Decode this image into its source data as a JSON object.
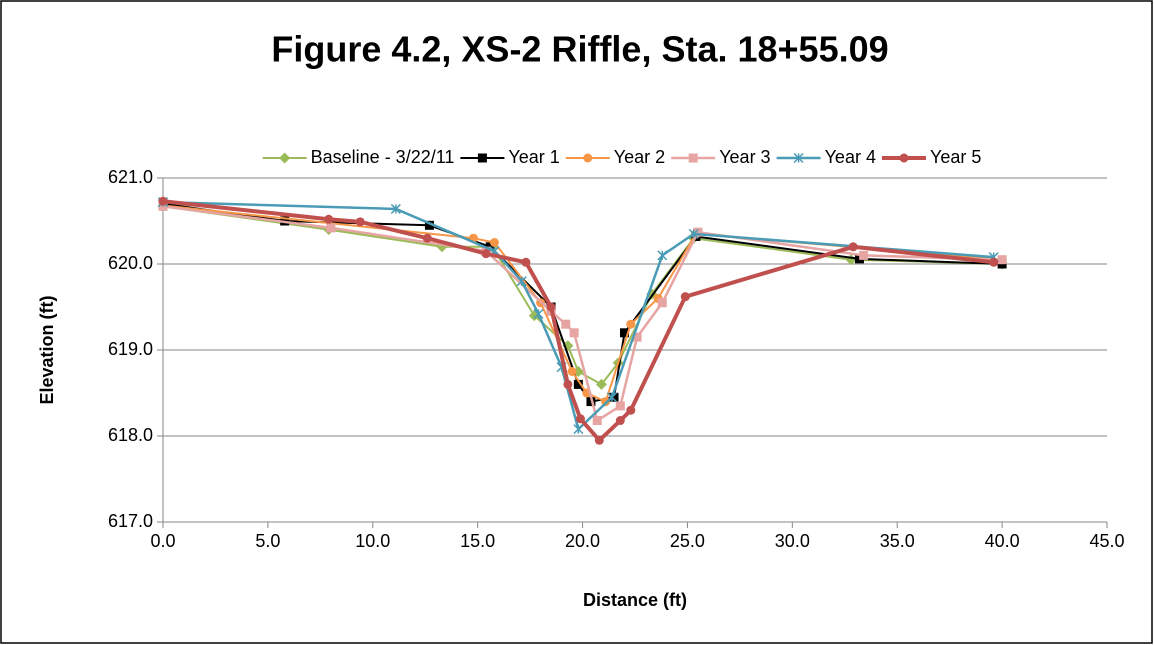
{
  "chart_data": {
    "type": "line",
    "title": "Figure 4.2, XS-2 Riffle, Sta. 18+55.09",
    "xlabel": "Distance (ft)",
    "ylabel": "Elevation (ft)",
    "xlim": [
      0,
      45
    ],
    "ylim": [
      617,
      621
    ],
    "xticks": [
      {
        "value": 0,
        "label": "0.0"
      },
      {
        "value": 5,
        "label": "5.0"
      },
      {
        "value": 10,
        "label": "10.0"
      },
      {
        "value": 15,
        "label": "15.0"
      },
      {
        "value": 20,
        "label": "20.0"
      },
      {
        "value": 25,
        "label": "25.0"
      },
      {
        "value": 30,
        "label": "30.0"
      },
      {
        "value": 35,
        "label": "35.0"
      },
      {
        "value": 40,
        "label": "40.0"
      },
      {
        "value": 45,
        "label": "45.0"
      }
    ],
    "yticks": [
      {
        "value": 617,
        "label": "617.0"
      },
      {
        "value": 618,
        "label": "618.0"
      },
      {
        "value": 619,
        "label": "619.0"
      },
      {
        "value": 620,
        "label": "620.0"
      },
      {
        "value": 621,
        "label": "621.0"
      }
    ],
    "grid": true,
    "legend": "top",
    "series": [
      {
        "name": "Baseline - 3/22/11",
        "color": "#9bbb59",
        "marker": "diamond",
        "width": 2,
        "x": [
          0,
          7.9,
          13.3,
          15.7,
          17.7,
          19.3,
          19.8,
          20.9,
          21.7,
          23.3,
          25.3,
          32.8,
          40
        ],
        "values": [
          620.67,
          620.4,
          620.2,
          620.2,
          619.4,
          619.05,
          618.75,
          618.6,
          618.85,
          619.65,
          620.3,
          620.05,
          620.0
        ]
      },
      {
        "name": "Year 1",
        "color": "#000000",
        "marker": "square",
        "width": 2,
        "x": [
          0,
          5.8,
          12.7,
          15.6,
          18.5,
          19.8,
          20.4,
          21.5,
          22.0,
          25.4,
          33.2,
          40
        ],
        "values": [
          620.7,
          620.5,
          620.45,
          620.2,
          619.5,
          618.6,
          618.4,
          618.45,
          619.2,
          620.32,
          620.06,
          620.0
        ]
      },
      {
        "name": "Year 2",
        "color": "#f79646",
        "marker": "circle",
        "width": 2,
        "x": [
          0,
          14.8,
          15.8,
          18.0,
          19.5,
          20.2,
          21.1,
          22.3,
          23.6,
          25.4,
          40
        ],
        "values": [
          620.68,
          620.3,
          620.25,
          619.55,
          618.75,
          618.5,
          618.4,
          619.3,
          619.6,
          620.35,
          620.05
        ]
      },
      {
        "name": "Year 3",
        "color": "#e6a4a2",
        "marker": "square",
        "width": 2.5,
        "x": [
          0,
          8.0,
          15.4,
          18.5,
          19.2,
          19.6,
          20.7,
          21.8,
          22.6,
          23.8,
          25.5,
          33.4,
          40
        ],
        "values": [
          620.67,
          620.42,
          620.15,
          619.45,
          619.3,
          619.2,
          618.18,
          618.35,
          619.15,
          619.55,
          620.37,
          620.1,
          620.05
        ]
      },
      {
        "name": "Year 4",
        "color": "#4a9bb5",
        "marker": "star",
        "width": 2.5,
        "x": [
          0,
          11.1,
          15.8,
          17.1,
          17.9,
          19.0,
          19.8,
          21.4,
          23.8,
          25.3,
          39.6
        ],
        "values": [
          620.72,
          620.64,
          620.15,
          619.8,
          619.42,
          618.8,
          618.08,
          618.45,
          620.1,
          620.35,
          620.08
        ]
      },
      {
        "name": "Year 5",
        "color": "#c0504d",
        "marker": "circle",
        "width": 4,
        "x": [
          0,
          7.9,
          9.4,
          12.6,
          15.4,
          17.3,
          18.5,
          19.3,
          19.9,
          20.8,
          21.8,
          22.3,
          24.9,
          32.9,
          39.6
        ],
        "values": [
          620.73,
          620.52,
          620.49,
          620.3,
          620.12,
          620.02,
          619.5,
          618.6,
          618.2,
          617.95,
          618.18,
          618.3,
          619.62,
          620.2,
          620.02
        ]
      }
    ]
  }
}
